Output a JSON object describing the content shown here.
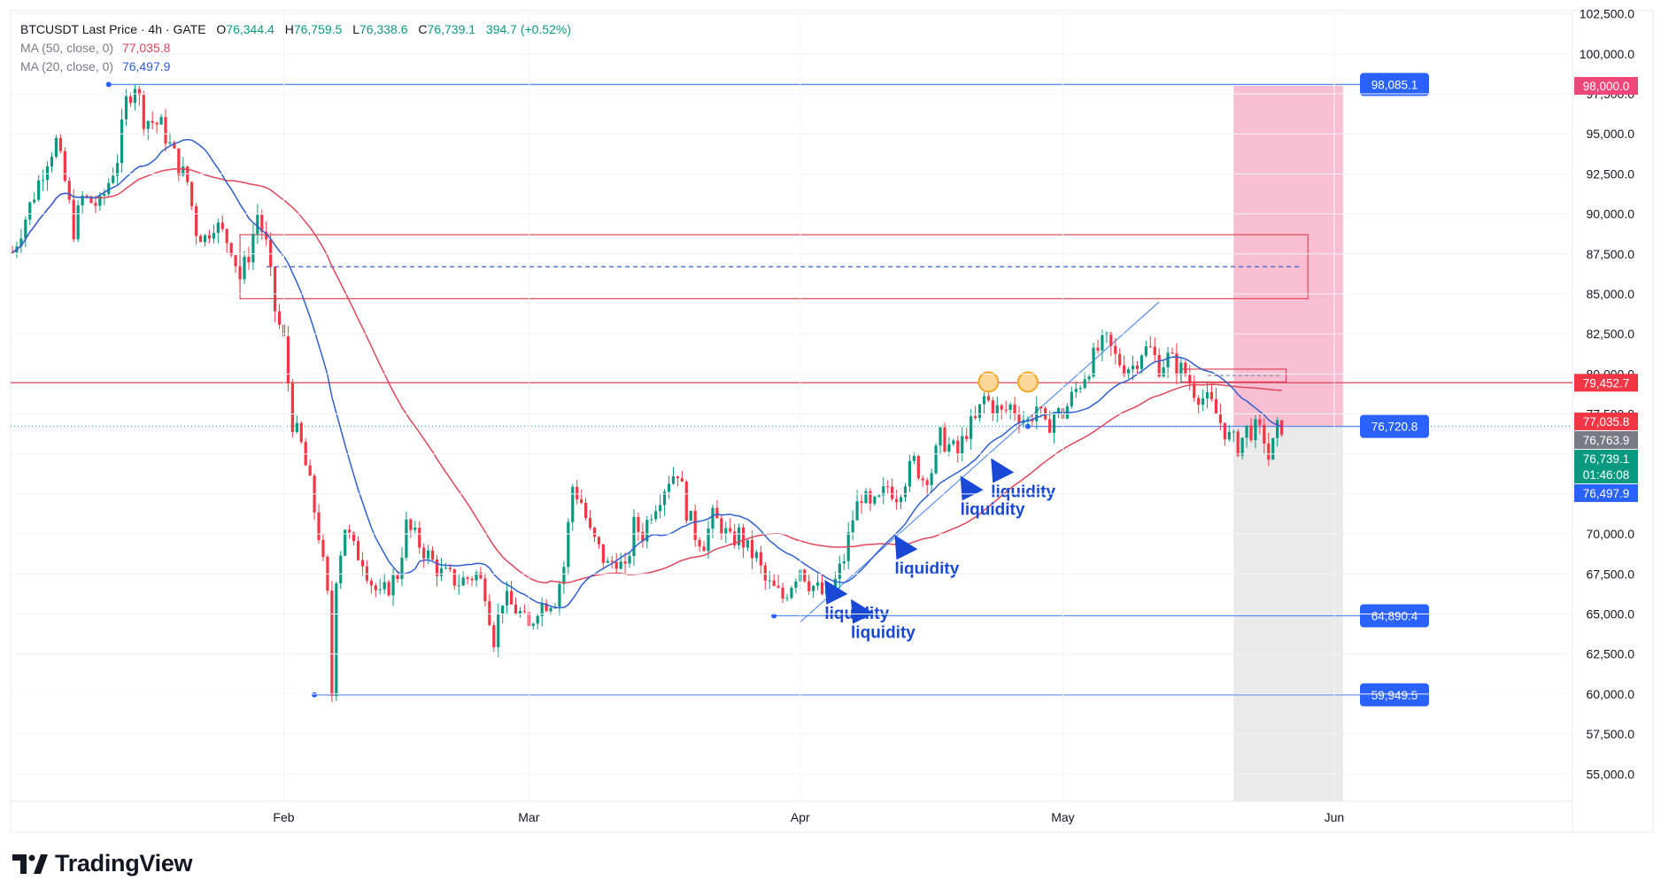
{
  "header": {
    "symbol": "BTCUSDT Last Price · 4h · GATE",
    "o_lbl": "O",
    "o_val": "76,344.4",
    "h_lbl": "H",
    "h_val": "76,759.5",
    "l_lbl": "L",
    "l_val": "76,338.6",
    "c_lbl": "C",
    "c_val": "76,739.1",
    "change": "394.7 (+0.52%)",
    "ma50_label": "MA (50, close, 0)",
    "ma50_value": "77,035.8",
    "ma20_label": "MA (20, close, 0)",
    "ma20_value": "76,497.9"
  },
  "colors": {
    "up": "#089981",
    "down": "#f23645",
    "ma50": "#e0465a",
    "ma20": "#2f5fd0",
    "hline": "#5b8def",
    "zone_pink": "#f8bbd0",
    "zone_grey": "#e8e8e8",
    "tag_blue": "#2962ff",
    "tag_red": "#f23645",
    "tag_pink": "#f0477b",
    "tag_grey": "#787b86",
    "tag_green": "#089981",
    "liquidity": "#1848d4",
    "circle": "#f5a623"
  },
  "chart_data": {
    "type": "candlestick",
    "symbol": "BTCUSDT",
    "interval": "4h",
    "exchange": "GATE",
    "ylim": [
      53300,
      102700
    ],
    "y_ticks": [
      55000,
      57500,
      60000,
      62500,
      65000,
      67500,
      70000,
      72500,
      75000,
      77500,
      80000,
      82500,
      85000,
      87500,
      90000,
      92500,
      95000,
      97500,
      100000,
      102500
    ],
    "y_tick_labels": [
      "55,000.0",
      "57,500.0",
      "60,000.0",
      "62,500.0",
      "65,000.0",
      "67,500.0",
      "70,000.0",
      "72,500.0",
      "75,000.0",
      "77,500.0",
      "80,000.0",
      "82,500.0",
      "85,000.0",
      "87,500.0",
      "90,000.0",
      "92,500.0",
      "95,000.0",
      "97,500.0",
      "100,000.0",
      "102,500.0"
    ],
    "x_ticks": [
      {
        "label": "Feb",
        "day": 31
      },
      {
        "label": "Mar",
        "day": 59
      },
      {
        "label": "Apr",
        "day": 90
      },
      {
        "label": "May",
        "day": 120
      },
      {
        "label": "Jun",
        "day": 151
      }
    ],
    "price_path": [
      [
        0,
        87600
      ],
      [
        2,
        90500
      ],
      [
        4,
        93500
      ],
      [
        5,
        94500
      ],
      [
        6,
        92000
      ],
      [
        7,
        89000
      ],
      [
        8,
        91000
      ],
      [
        10,
        90500
      ],
      [
        12,
        93500
      ],
      [
        13,
        97000
      ],
      [
        14,
        98200
      ],
      [
        15,
        96000
      ],
      [
        17,
        95500
      ],
      [
        19,
        93000
      ],
      [
        20,
        92000
      ],
      [
        21,
        89000
      ],
      [
        22,
        88500
      ],
      [
        23,
        89500
      ],
      [
        25,
        88000
      ],
      [
        26,
        86000
      ],
      [
        27,
        87500
      ],
      [
        28,
        90000
      ],
      [
        29,
        88000
      ],
      [
        30,
        84000
      ],
      [
        31,
        82000
      ],
      [
        32,
        77000
      ],
      [
        33,
        75500
      ],
      [
        34,
        73000
      ],
      [
        35,
        70000
      ],
      [
        36,
        66000
      ],
      [
        36.5,
        60000
      ],
      [
        37,
        67500
      ],
      [
        38,
        70500
      ],
      [
        39,
        69000
      ],
      [
        40,
        68500
      ],
      [
        41,
        67000
      ],
      [
        42,
        66000
      ],
      [
        44,
        67500
      ],
      [
        45,
        70500
      ],
      [
        47,
        69000
      ],
      [
        49,
        67500
      ],
      [
        51,
        67000
      ],
      [
        53,
        67500
      ],
      [
        54,
        66500
      ],
      [
        55,
        63500
      ],
      [
        56,
        66000
      ],
      [
        58,
        65000
      ],
      [
        59,
        64000
      ],
      [
        60,
        65500
      ],
      [
        62,
        66000
      ],
      [
        63,
        68000
      ],
      [
        64,
        73000
      ],
      [
        65,
        72000
      ],
      [
        66,
        70000
      ],
      [
        67,
        69000
      ],
      [
        68,
        68000
      ],
      [
        69,
        68500
      ],
      [
        70,
        67500
      ],
      [
        71,
        70500
      ],
      [
        72,
        70000
      ],
      [
        73,
        71500
      ],
      [
        74,
        72500
      ],
      [
        75,
        73500
      ],
      [
        76,
        74000
      ],
      [
        77,
        71500
      ],
      [
        78,
        70000
      ],
      [
        79,
        69500
      ],
      [
        80,
        71000
      ],
      [
        81,
        70500
      ],
      [
        82,
        69500
      ],
      [
        83,
        70000
      ],
      [
        84,
        69000
      ],
      [
        85,
        68500
      ],
      [
        86,
        67000
      ],
      [
        87,
        66500
      ],
      [
        88,
        66000
      ],
      [
        89,
        67000
      ],
      [
        90,
        68000
      ],
      [
        91,
        67000
      ],
      [
        92,
        66500
      ],
      [
        93,
        66000
      ],
      [
        94,
        67000
      ],
      [
        95,
        68500
      ],
      [
        96,
        71000
      ],
      [
        97,
        72500
      ],
      [
        98,
        71500
      ],
      [
        99,
        72000
      ],
      [
        100,
        73000
      ],
      [
        101,
        72500
      ],
      [
        102,
        73500
      ],
      [
        103,
        74500
      ],
      [
        104,
        73500
      ],
      [
        105,
        74000
      ],
      [
        106,
        76000
      ],
      [
        107,
        75500
      ],
      [
        108,
        75000
      ],
      [
        109,
        76500
      ],
      [
        110,
        77000
      ],
      [
        111,
        78500
      ],
      [
        112,
        78000
      ],
      [
        113,
        77500
      ],
      [
        114,
        78000
      ],
      [
        115,
        77500
      ],
      [
        116,
        77000
      ],
      [
        117,
        78000
      ],
      [
        118,
        76500
      ],
      [
        119,
        77500
      ],
      [
        120,
        77500
      ],
      [
        121,
        78500
      ],
      [
        122,
        79500
      ],
      [
        123,
        80500
      ],
      [
        124,
        81500
      ],
      [
        125,
        82000
      ],
      [
        126,
        81000
      ],
      [
        127,
        80500
      ],
      [
        128,
        80500
      ],
      [
        129,
        81500
      ],
      [
        130,
        81500
      ],
      [
        131,
        80500
      ],
      [
        132,
        81000
      ],
      [
        133,
        80500
      ],
      [
        134,
        80000
      ],
      [
        135,
        79000
      ],
      [
        136,
        78500
      ],
      [
        137,
        78000
      ],
      [
        138,
        77000
      ],
      [
        139,
        76000
      ],
      [
        140,
        75500
      ],
      [
        141,
        76500
      ],
      [
        142,
        76500
      ],
      [
        143,
        76000
      ],
      [
        143.6,
        74500
      ],
      [
        144,
        75500
      ],
      [
        144.5,
        76500
      ],
      [
        145,
        76739
      ]
    ],
    "hlines": [
      {
        "label": "98,085.1",
        "value": 98085,
        "x_start_day": 11
      },
      {
        "label": "76,720.8",
        "value": 76720,
        "x_start_day": 116
      },
      {
        "label": "64,890.4",
        "value": 64890,
        "x_start_day": 87
      },
      {
        "label": "59,949.5",
        "value": 59950,
        "x_start_day": 34.5
      }
    ],
    "resistance": {
      "value": 79452
    },
    "rect_zone": {
      "y_top": 88700,
      "y_bot": 84700,
      "y_mid": 86700,
      "x_start_day": 26,
      "x_end_day": 148
    },
    "small_box": {
      "y_top": 80300,
      "y_bot": 79500,
      "x_start_day": 133.5,
      "x_end_day": 145.5
    },
    "position_tool": {
      "entry": 76720,
      "target": 98000,
      "stop": 53300,
      "x_start_day": 139.5,
      "x_end_day": 152
    },
    "trendline": {
      "from": [
        90,
        64500
      ],
      "to": [
        131,
        84500
      ]
    },
    "circles": [
      {
        "day": 111.5,
        "value": 79500
      },
      {
        "day": 116,
        "value": 79500
      }
    ],
    "annotations": [
      {
        "text": "liquidity",
        "day": 94,
        "value": 64700
      },
      {
        "text": "liquidity",
        "day": 97,
        "value": 63500
      },
      {
        "text": "liquidity",
        "day": 102,
        "value": 67500
      },
      {
        "text": "liquidity",
        "day": 109.5,
        "value": 71200
      },
      {
        "text": "liquidity",
        "day": 113,
        "value": 72300
      }
    ],
    "price_tags": [
      {
        "label": "98,000.0",
        "value": 98000,
        "color": "tag_pink"
      },
      {
        "label": "79,452.7",
        "value": 79450,
        "color": "tag_red"
      },
      {
        "label": "77,035.8",
        "value": 77035,
        "color": "tag_red"
      },
      {
        "label": "76,763.9",
        "value": 76763,
        "color": "tag_grey"
      },
      {
        "label": "76,739.1",
        "value": 76739,
        "color": "tag_green"
      },
      {
        "label": "76,497.9",
        "value": 76497,
        "color": "tag_blue"
      }
    ],
    "countdown": "01:46:08",
    "ma_periods": [
      20,
      50
    ]
  },
  "brand": {
    "name": "TradingView"
  }
}
